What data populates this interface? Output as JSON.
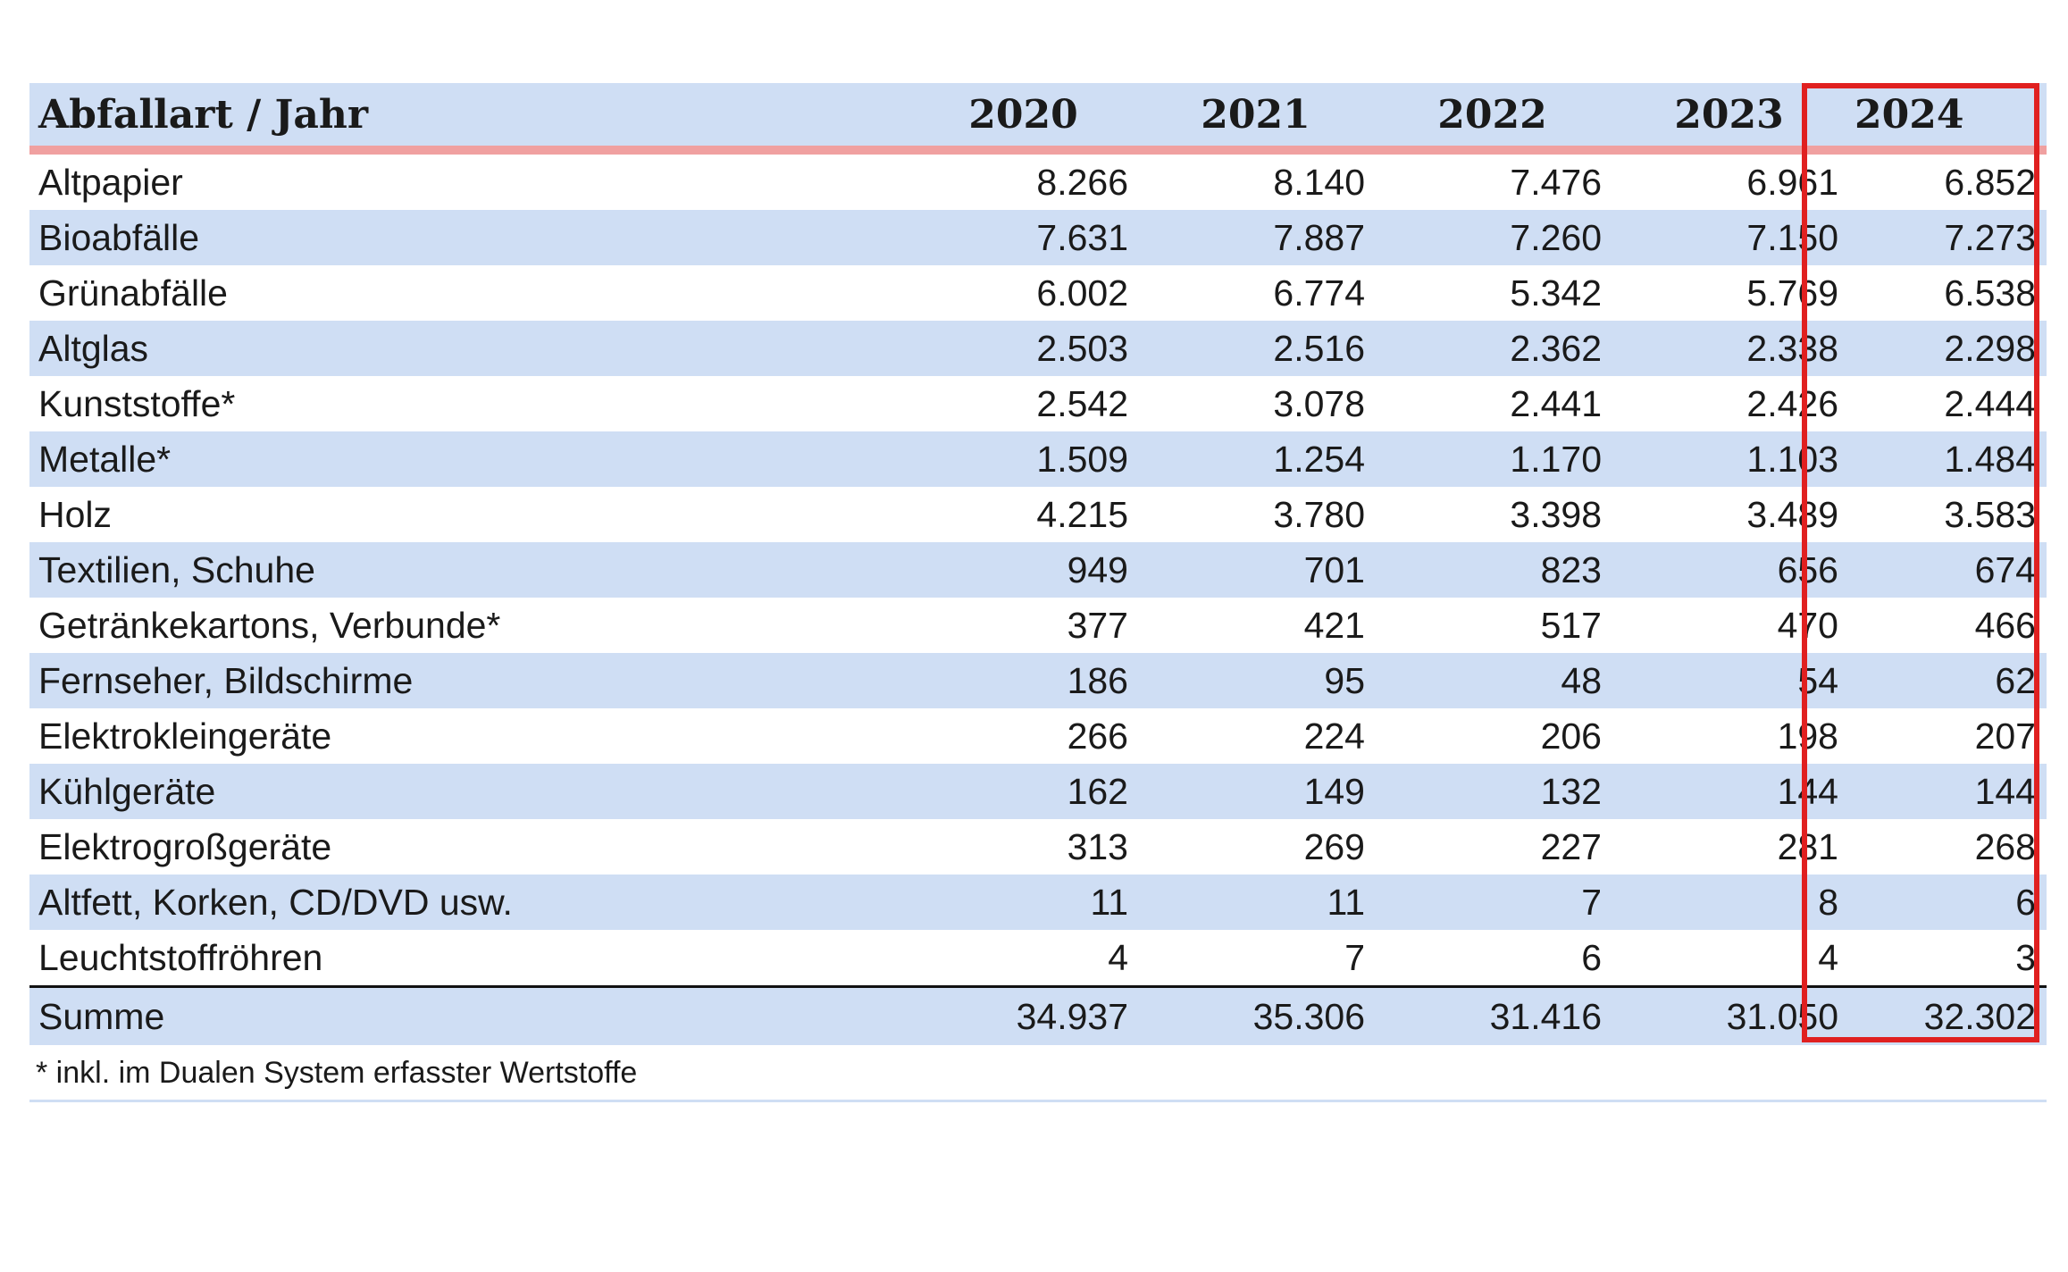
{
  "table": {
    "header_label": "Abfallart  /  Jahr",
    "years": [
      "2020",
      "2021",
      "2022",
      "2023",
      "2024"
    ],
    "rows": [
      {
        "label": "Altpapier",
        "values": [
          "8.266",
          "8.140",
          "7.476",
          "6.961",
          "6.852"
        ]
      },
      {
        "label": "Bioabfälle",
        "values": [
          "7.631",
          "7.887",
          "7.260",
          "7.150",
          "7.273"
        ]
      },
      {
        "label": "Grünabfälle",
        "values": [
          "6.002",
          "6.774",
          "5.342",
          "5.769",
          "6.538"
        ]
      },
      {
        "label": "Altglas",
        "values": [
          "2.503",
          "2.516",
          "2.362",
          "2.338",
          "2.298"
        ]
      },
      {
        "label": "Kunststoffe*",
        "values": [
          "2.542",
          "3.078",
          "2.441",
          "2.426",
          "2.444"
        ]
      },
      {
        "label": "Metalle*",
        "values": [
          "1.509",
          "1.254",
          "1.170",
          "1.103",
          "1.484"
        ]
      },
      {
        "label": "Holz",
        "values": [
          "4.215",
          "3.780",
          "3.398",
          "3.489",
          "3.583"
        ]
      },
      {
        "label": "Textilien, Schuhe",
        "values": [
          "949",
          "701",
          "823",
          "656",
          "674"
        ]
      },
      {
        "label": "Getränkekartons, Verbunde*",
        "values": [
          "377",
          "421",
          "517",
          "470",
          "466"
        ]
      },
      {
        "label": "Fernseher, Bildschirme",
        "values": [
          "186",
          "95",
          "48",
          "54",
          "62"
        ]
      },
      {
        "label": "Elektrokleingeräte",
        "values": [
          "266",
          "224",
          "206",
          "198",
          "207"
        ]
      },
      {
        "label": "Kühlgeräte",
        "values": [
          "162",
          "149",
          "132",
          "144",
          "144"
        ]
      },
      {
        "label": "Elektrogroßgeräte",
        "values": [
          "313",
          "269",
          "227",
          "281",
          "268"
        ]
      },
      {
        "label": "Altfett, Korken, CD/DVD usw.",
        "values": [
          "11",
          "11",
          "7",
          "8",
          "6"
        ]
      },
      {
        "label": "Leuchtstoffröhren",
        "values": [
          "4",
          "7",
          "6",
          "4",
          "3"
        ]
      }
    ],
    "sum": {
      "label": "Summe",
      "values": [
        "34.937",
        "35.306",
        "31.416",
        "31.050",
        "32.302"
      ]
    }
  },
  "footnote": "* inkl. im Dualen System erfasster Wertstoffe",
  "colors": {
    "row_band": "#cfdef4",
    "header_rule": "#f0a0a0",
    "highlight": "#e02020"
  }
}
